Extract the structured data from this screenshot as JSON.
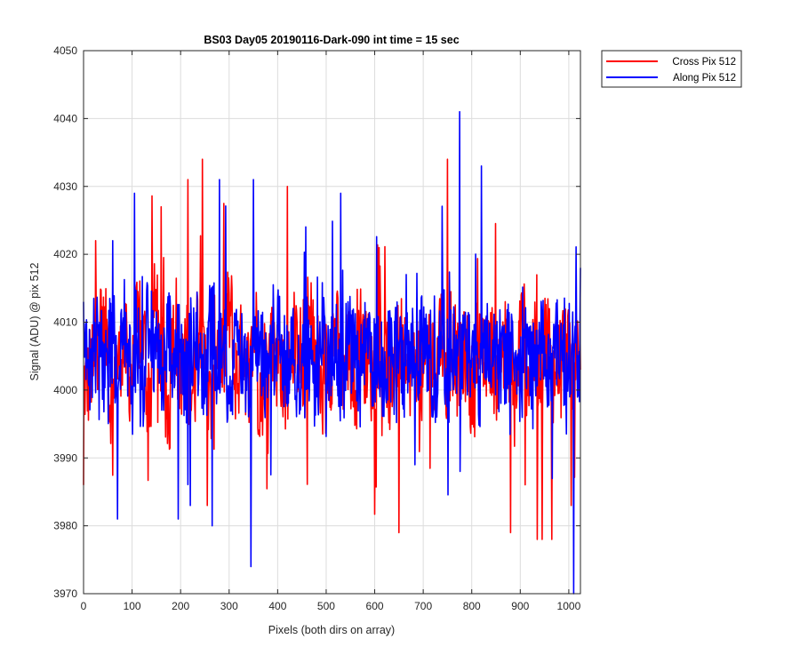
{
  "chart_data": {
    "type": "line",
    "title": "BS03 Day05 20190116-Dark-090 int time = 15 sec",
    "xlabel": "Pixels (both dirs on array)",
    "ylabel": "Signal (ADU) @ pix 512",
    "xlim": [
      0,
      1024
    ],
    "ylim": [
      3970,
      4050
    ],
    "xticks": [
      0,
      100,
      200,
      300,
      400,
      500,
      600,
      700,
      800,
      900,
      1000
    ],
    "yticks": [
      3970,
      3980,
      3990,
      4000,
      4010,
      4020,
      4030,
      4040,
      4050
    ],
    "grid": true,
    "legend_position": "outside-top-right",
    "series": [
      {
        "name": "Cross Pix 512",
        "color": "#ff0000",
        "summary": {
          "mean": 4005,
          "min": 3978,
          "max": 4034
        },
        "highlights": [
          {
            "x": 0,
            "y": 3986
          },
          {
            "x": 25,
            "y": 4022
          },
          {
            "x": 160,
            "y": 4027
          },
          {
            "x": 215,
            "y": 4031
          },
          {
            "x": 245,
            "y": 4034
          },
          {
            "x": 255,
            "y": 3983
          },
          {
            "x": 420,
            "y": 4030
          },
          {
            "x": 650,
            "y": 3979
          },
          {
            "x": 750,
            "y": 4034
          },
          {
            "x": 880,
            "y": 3979
          },
          {
            "x": 935,
            "y": 3978
          },
          {
            "x": 945,
            "y": 3978
          },
          {
            "x": 965,
            "y": 3978
          },
          {
            "x": 1005,
            "y": 3983
          },
          {
            "x": 1024,
            "y": 4003
          }
        ],
        "values": [
          4001,
          4003,
          4010,
          4008,
          3999,
          4004,
          4006,
          4002,
          4009,
          4007,
          4000,
          4012,
          4005,
          3997,
          4008,
          4003,
          4006,
          4001,
          4010,
          4004,
          3998,
          4007,
          4005,
          4011,
          4002,
          4006,
          4003,
          4009,
          4000,
          4005,
          4008,
          4004,
          4001,
          4007,
          4006,
          4002,
          4010,
          4005,
          3999,
          4004,
          4008,
          4003,
          4006,
          4001,
          4009,
          4005,
          4002,
          4007,
          4004,
          4000,
          4006,
          4008,
          4003,
          4005,
          4001,
          4007,
          4004,
          4009,
          4002,
          4006,
          4003,
          4005,
          4000,
          4008,
          4004,
          4006,
          4002,
          4007,
          4005,
          4001,
          4009,
          4003,
          4006,
          4004,
          4008,
          4002,
          4005,
          4007,
          4003,
          4006
        ]
      },
      {
        "name": "Along Pix 512",
        "color": "#0000ff",
        "summary": {
          "mean": 4005,
          "min": 3970,
          "max": 4041
        },
        "highlights": [
          {
            "x": 0,
            "y": 4013
          },
          {
            "x": 60,
            "y": 4022
          },
          {
            "x": 70,
            "y": 3981
          },
          {
            "x": 105,
            "y": 4029
          },
          {
            "x": 195,
            "y": 3981
          },
          {
            "x": 220,
            "y": 3983
          },
          {
            "x": 280,
            "y": 4031
          },
          {
            "x": 265,
            "y": 3980
          },
          {
            "x": 345,
            "y": 3974
          },
          {
            "x": 350,
            "y": 4031
          },
          {
            "x": 530,
            "y": 4029
          },
          {
            "x": 775,
            "y": 4041
          },
          {
            "x": 820,
            "y": 4033
          },
          {
            "x": 1010,
            "y": 3970
          },
          {
            "x": 1024,
            "y": 4018
          }
        ],
        "values": [
          4006,
          4004,
          4008,
          4002,
          4007,
          4005,
          4010,
          4003,
          4006,
          4001,
          4009,
          4005,
          4003,
          4008,
          4004,
          4006,
          4002,
          4007,
          4005,
          4003,
          4009,
          4004,
          4006,
          4001,
          4008,
          4005,
          4003,
          4007,
          4006,
          4002,
          4005,
          4008,
          4004,
          4006,
          4003,
          4007,
          4005,
          4001,
          4009,
          4004,
          4006,
          4002,
          4008,
          4005,
          4003,
          4007,
          4004,
          4006,
          4002,
          4005,
          4008,
          4003,
          4006,
          4004,
          4007,
          4005,
          4002,
          4009,
          4004,
          4006,
          4003,
          4007,
          4005,
          4001,
          4008,
          4004,
          4006,
          4003,
          4007,
          4005,
          4002,
          4006,
          4004,
          4008,
          4003,
          4005,
          4007,
          4004,
          4006,
          4005
        ]
      }
    ]
  }
}
